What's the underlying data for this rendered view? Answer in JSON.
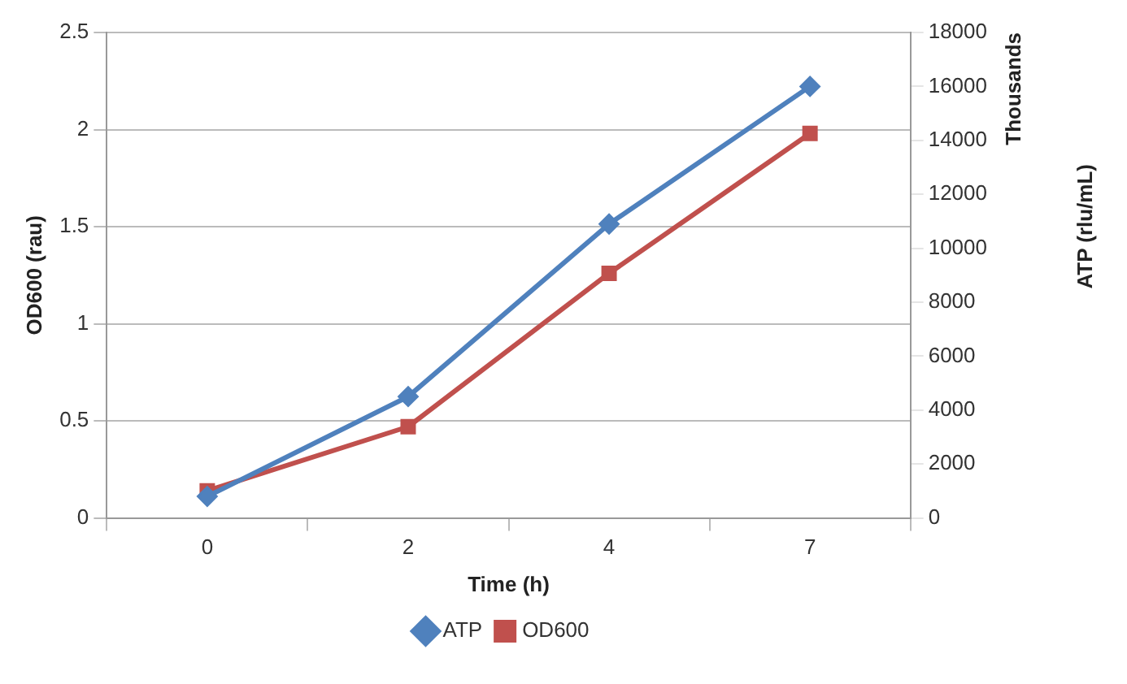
{
  "chart_data": {
    "type": "line",
    "xlabel": "Time (h)",
    "ylabel": "OD600 (rau)",
    "y2label": "ATP (rlu/mL)",
    "categories": [
      "0",
      "2",
      "4",
      "7"
    ],
    "series": [
      {
        "name": "OD600",
        "color": "#c0504d",
        "marker": "square",
        "values": [
          0.14,
          0.47,
          1.26,
          1.98
        ]
      },
      {
        "name": "ATP",
        "color": "#4f81bd",
        "marker": "diamond",
        "axis": "y2",
        "values": [
          800,
          4500,
          10900,
          16000
        ]
      }
    ],
    "ylim": [
      0,
      2.5
    ],
    "yticks": [
      0,
      0.5,
      1,
      1.5,
      2,
      2.5
    ],
    "y2lim": [
      0,
      18000
    ],
    "y2ticks": [
      0,
      2000,
      4000,
      6000,
      8000,
      10000,
      12000,
      14000,
      16000,
      18000
    ],
    "annotations": [
      "Thousands"
    ],
    "grid": "y",
    "legend": "bottom",
    "line_style": "solid"
  }
}
